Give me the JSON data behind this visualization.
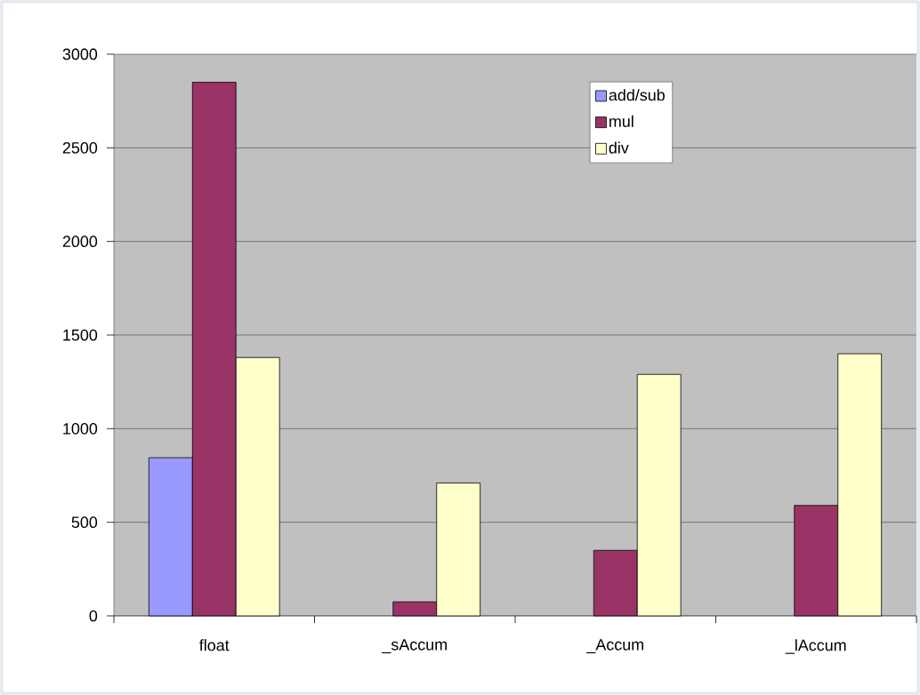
{
  "chart_data": {
    "type": "bar",
    "categories": [
      "float",
      "_sAccum",
      "_Accum",
      "_lAccum"
    ],
    "series": [
      {
        "name": "add/sub",
        "color": "#9999ff",
        "values": [
          845,
          null,
          null,
          null
        ]
      },
      {
        "name": "mul",
        "color": "#993366",
        "values": [
          2850,
          75,
          350,
          590
        ]
      },
      {
        "name": "div",
        "color": "#ffffcc",
        "values": [
          1380,
          710,
          1290,
          1400
        ]
      }
    ],
    "ylim": [
      0,
      3000
    ],
    "yticks": [
      0,
      500,
      1000,
      1500,
      2000,
      2500,
      3000
    ],
    "grid": "y",
    "legend": "top right"
  }
}
